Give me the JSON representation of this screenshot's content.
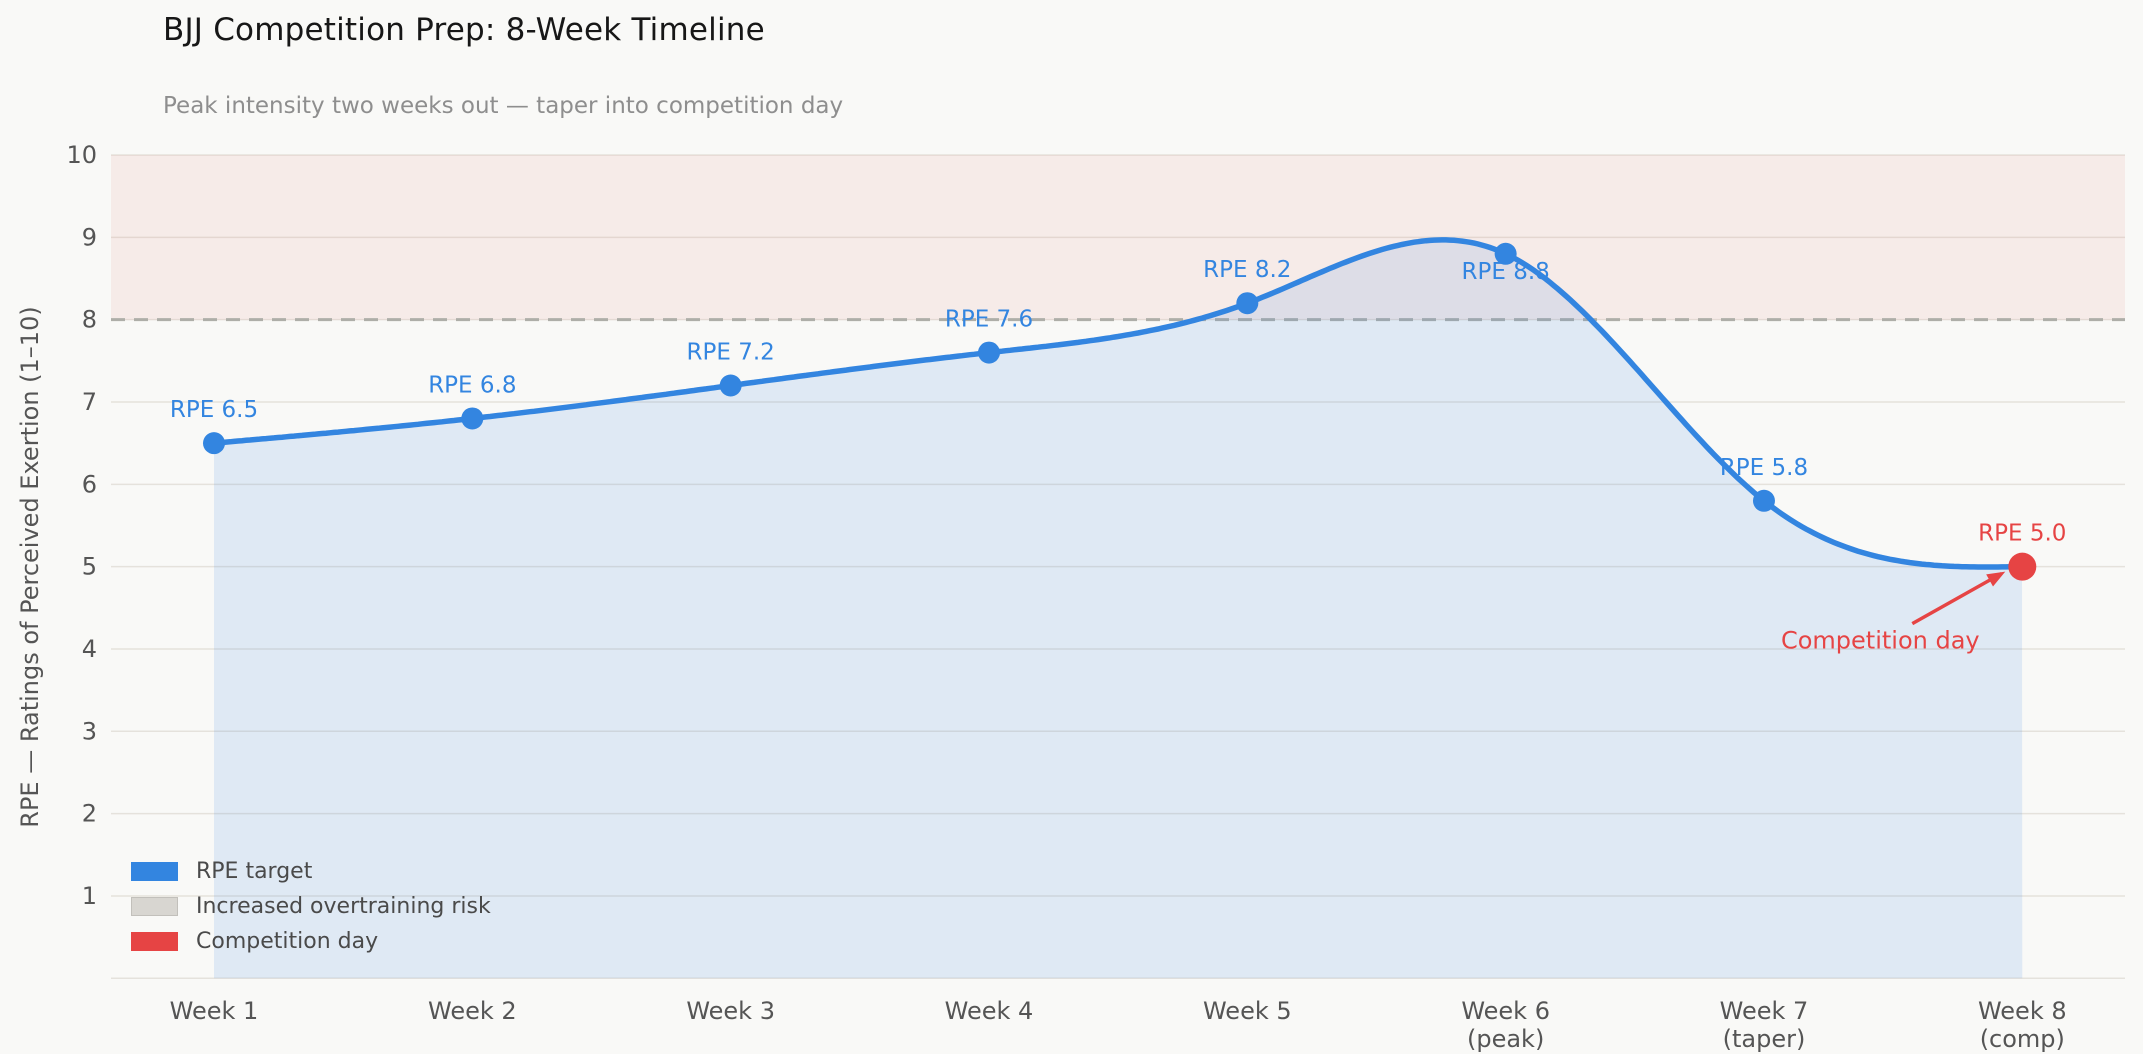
{
  "title": "BJJ Competition Prep: 8-Week Timeline",
  "subtitle": "Peak intensity two weeks out — taper into competition day",
  "ylabel": "RPE — Ratings of Perceived Exertion (1–10)",
  "legend": [
    {
      "label": "RPE target",
      "color": "#3385e0",
      "border": "#3385e0"
    },
    {
      "label": "Increased overtraining risk",
      "color": "#d8d6d1",
      "border": "#c2c0bb"
    },
    {
      "label": "Competition day",
      "color": "#e64444",
      "border": "#e64444"
    }
  ],
  "chart_data": {
    "type": "line",
    "smooth": true,
    "x": [
      1,
      2,
      3,
      4,
      5,
      6,
      7,
      8
    ],
    "categories": [
      {
        "label": "Week 1",
        "sub": ""
      },
      {
        "label": "Week 2",
        "sub": ""
      },
      {
        "label": "Week 3",
        "sub": ""
      },
      {
        "label": "Week 4",
        "sub": ""
      },
      {
        "label": "Week 5",
        "sub": ""
      },
      {
        "label": "Week 6",
        "sub": "(peak)"
      },
      {
        "label": "Week 7",
        "sub": "(taper)"
      },
      {
        "label": "Week 8",
        "sub": "(comp)"
      }
    ],
    "series": [
      {
        "name": "RPE target",
        "values": [
          6.5,
          6.8,
          7.2,
          7.6,
          8.2,
          8.8,
          5.8,
          5.0
        ]
      }
    ],
    "point_labels": [
      "RPE 6.5",
      "RPE 6.8",
      "RPE 7.2",
      "RPE 7.6",
      "RPE 8.2",
      "RPE 8.8",
      "RPE 5.8",
      "RPE 5.0"
    ],
    "competition_index": 7,
    "annotation": {
      "text": "Competition day",
      "target_week": 8,
      "target_value": 5.0
    },
    "risk_band": {
      "from": 8,
      "to": 10,
      "label": "Increased overtraining risk"
    },
    "threshold": 8,
    "ylim": [
      0,
      10
    ],
    "yticks": [
      1,
      2,
      3,
      4,
      5,
      6,
      7,
      8,
      9,
      10
    ],
    "grid": "horizontal",
    "legend_position": "lower-left",
    "colors": {
      "line": "#3385e0",
      "marker": "#3385e0",
      "competition": "#e64444",
      "fill": "rgba(51,133,224,0.13)",
      "risk_band": "rgba(222,98,88,0.09)",
      "grid": "#e5e2dc",
      "dashed": "#aeaea8",
      "tick_text": "#555555"
    }
  }
}
